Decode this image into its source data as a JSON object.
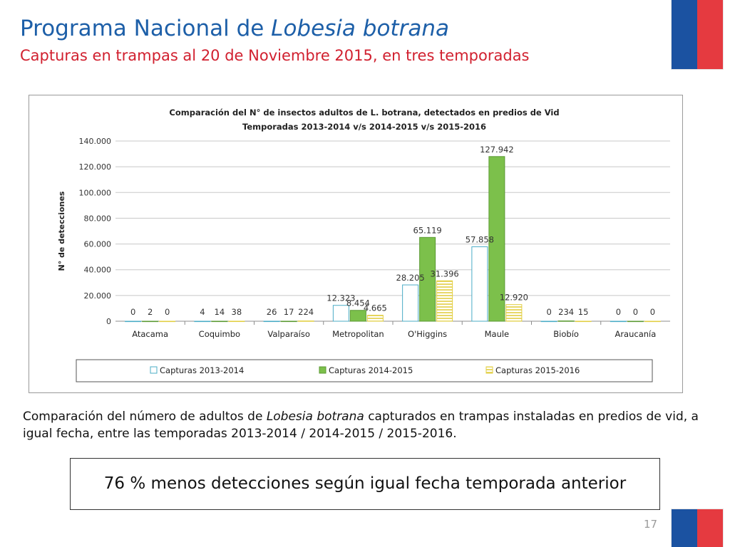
{
  "slide": {
    "title_main": "Programa Nacional de ",
    "title_italic": "Lobesia botrana",
    "subtitle": "Capturas en trampas al 20 de Noviembre 2015, en tres temporadas",
    "caption_pre": "Comparación del número de adultos de ",
    "caption_italic": "Lobesia botrana",
    "caption_post": " capturados en trampas instaladas en predios de vid, a igual fecha, entre las temporadas 2013-2014 / 2014-2015 / 2015-2016.",
    "highlight": "76 % menos detecciones según igual fecha temporada anterior",
    "page_number": "17"
  },
  "colors": {
    "title": "#1d5fa8",
    "subtitle": "#d1202f",
    "flag_blue": "#1b52a1",
    "flag_red": "#e53a40"
  },
  "chart_data": {
    "type": "bar",
    "title": [
      "Comparación  del N°  de insectos adultos de L. botrana, detectados en predios de Vid",
      "Temporadas  2013-2014 v/s 2014-2015 v/s 2015-2016"
    ],
    "xlabel": "",
    "ylabel": "N° de detecciones",
    "ylim": [
      0,
      140000
    ],
    "yticks": [
      0,
      20000,
      40000,
      60000,
      80000,
      100000,
      120000,
      140000
    ],
    "ytick_labels": [
      "0",
      "20.000",
      "40.000",
      "60.000",
      "80.000",
      "100.000",
      "120.000",
      "140.000"
    ],
    "grid": true,
    "legend_position": "bottom",
    "categories": [
      "Atacama",
      "Coquimbo",
      "Valparaíso",
      "Metropolitan",
      "O'Higgins",
      "Maule",
      "Biobío",
      "Araucanía"
    ],
    "series": [
      {
        "name": "Capturas 2013-2014",
        "style": "outline",
        "color": "#4bacc6",
        "values": [
          0,
          4,
          26,
          12323,
          28205,
          57858,
          0,
          0
        ],
        "labels": [
          "0",
          "4",
          "26",
          "12.323",
          "28.205",
          "57.858",
          "0",
          "0"
        ]
      },
      {
        "name": "Capturas 2014-2015",
        "style": "solid",
        "color": "#7cc04b",
        "values": [
          2,
          14,
          17,
          8454,
          65119,
          127942,
          234,
          0
        ],
        "labels": [
          "2",
          "14",
          "17",
          "8.454",
          "65.119",
          "127.942",
          "234",
          "0"
        ]
      },
      {
        "name": "Capturas 2015-2016",
        "style": "hatched",
        "color": "#e2cf43",
        "values": [
          0,
          38,
          224,
          4665,
          31396,
          12920,
          15,
          0
        ],
        "labels": [
          "0",
          "38",
          "224",
          "4.665",
          "31.396",
          "12.920",
          "15",
          "0"
        ]
      }
    ]
  }
}
